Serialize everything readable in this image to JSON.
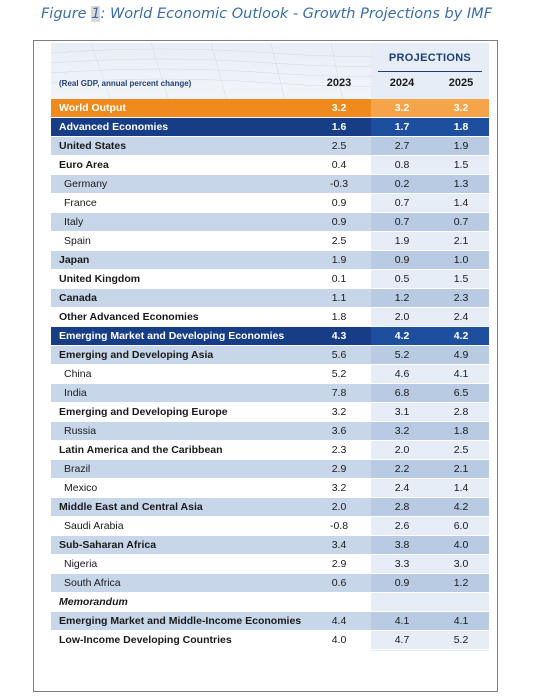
{
  "caption": {
    "prefix": "Figure ",
    "number": "1",
    "suffix": ": World Economic Outlook - Growth Projections by IMF"
  },
  "table": {
    "note": "(Real GDP, annual percent change)",
    "projections_label": "PROJECTIONS",
    "years": [
      "2023",
      "2024",
      "2025"
    ],
    "rows": [
      {
        "name": "World Output",
        "values": [
          "3.2",
          "3.2",
          "3.2"
        ],
        "style": "orange"
      },
      {
        "name": "Advanced Economies",
        "values": [
          "1.6",
          "1.7",
          "1.8"
        ],
        "style": "navy"
      },
      {
        "name": "United States",
        "values": [
          "2.5",
          "2.7",
          "1.9"
        ],
        "style": "shade bold"
      },
      {
        "name": "Euro Area",
        "values": [
          "0.4",
          "0.8",
          "1.5"
        ],
        "style": "bold"
      },
      {
        "name": "Germany",
        "values": [
          "-0.3",
          "0.2",
          "1.3"
        ],
        "style": "shade sub"
      },
      {
        "name": "France",
        "values": [
          "0.9",
          "0.7",
          "1.4"
        ],
        "style": "sub"
      },
      {
        "name": "Italy",
        "values": [
          "0.9",
          "0.7",
          "0.7"
        ],
        "style": "shade sub"
      },
      {
        "name": "Spain",
        "values": [
          "2.5",
          "1.9",
          "2.1"
        ],
        "style": "sub"
      },
      {
        "name": "Japan",
        "values": [
          "1.9",
          "0.9",
          "1.0"
        ],
        "style": "shade bold"
      },
      {
        "name": "United Kingdom",
        "values": [
          "0.1",
          "0.5",
          "1.5"
        ],
        "style": "bold"
      },
      {
        "name": "Canada",
        "values": [
          "1.1",
          "1.2",
          "2.3"
        ],
        "style": "shade bold"
      },
      {
        "name": "Other Advanced Economies",
        "values": [
          "1.8",
          "2.0",
          "2.4"
        ],
        "style": "bold"
      },
      {
        "name": "Emerging Market and Developing Economies",
        "values": [
          "4.3",
          "4.2",
          "4.2"
        ],
        "style": "navy"
      },
      {
        "name": "Emerging and Developing Asia",
        "values": [
          "5.6",
          "5.2",
          "4.9"
        ],
        "style": "shade bold"
      },
      {
        "name": "China",
        "values": [
          "5.2",
          "4.6",
          "4.1"
        ],
        "style": "sub"
      },
      {
        "name": "India",
        "values": [
          "7.8",
          "6.8",
          "6.5"
        ],
        "style": "shade sub"
      },
      {
        "name": "Emerging and Developing Europe",
        "values": [
          "3.2",
          "3.1",
          "2.8"
        ],
        "style": "bold"
      },
      {
        "name": "Russia",
        "values": [
          "3.6",
          "3.2",
          "1.8"
        ],
        "style": "shade sub"
      },
      {
        "name": "Latin America and the Caribbean",
        "values": [
          "2.3",
          "2.0",
          "2.5"
        ],
        "style": "bold"
      },
      {
        "name": "Brazil",
        "values": [
          "2.9",
          "2.2",
          "2.1"
        ],
        "style": "shade sub"
      },
      {
        "name": "Mexico",
        "values": [
          "3.2",
          "2.4",
          "1.4"
        ],
        "style": "sub"
      },
      {
        "name": "Middle East and Central Asia",
        "values": [
          "2.0",
          "2.8",
          "4.2"
        ],
        "style": "shade bold"
      },
      {
        "name": "Saudi Arabia",
        "values": [
          "-0.8",
          "2.6",
          "6.0"
        ],
        "style": "sub"
      },
      {
        "name": "Sub-Saharan Africa",
        "values": [
          "3.4",
          "3.8",
          "4.0"
        ],
        "style": "shade bold"
      },
      {
        "name": "Nigeria",
        "values": [
          "2.9",
          "3.3",
          "3.0"
        ],
        "style": "sub"
      },
      {
        "name": "South Africa",
        "values": [
          "0.6",
          "0.9",
          "1.2"
        ],
        "style": "shade sub"
      },
      {
        "name": "Memorandum",
        "values": [
          "",
          "",
          ""
        ],
        "style": "memo"
      },
      {
        "name": "Emerging Market and Middle-Income Economies",
        "values": [
          "4.4",
          "4.1",
          "4.1"
        ],
        "style": "shade bold"
      },
      {
        "name": "Low-Income Developing Countries",
        "values": [
          "4.0",
          "4.7",
          "5.2"
        ],
        "style": "bold"
      }
    ]
  }
}
